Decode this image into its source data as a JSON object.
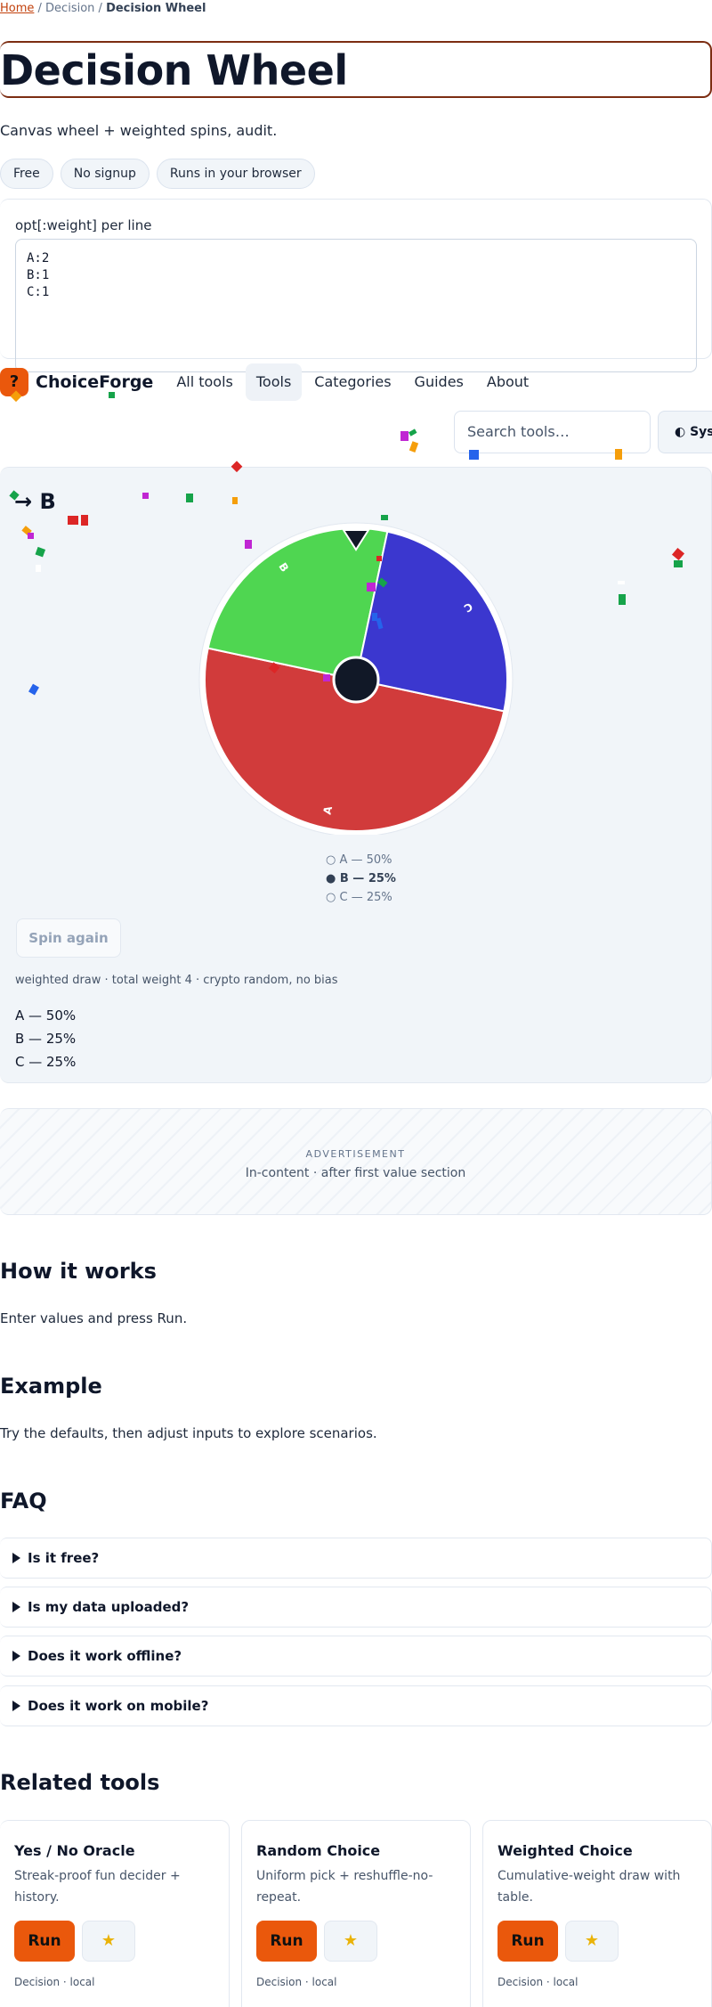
{
  "breadcrumb": {
    "home": "Home",
    "sep1": " / ",
    "section": "Decision",
    "sep2": " / ",
    "current": "Decision Wheel"
  },
  "page": {
    "title": "Decision Wheel",
    "subtitle": "Canvas wheel + weighted spins, audit."
  },
  "chips": [
    "Free",
    "No signup",
    "Runs in your browser"
  ],
  "input": {
    "label": "opt[:weight] per line",
    "value": "A:2\nB:1\nC:1"
  },
  "nav": {
    "logo_glyph": "?",
    "brand": "ChoiceForge",
    "links": [
      "All tools",
      "Tools",
      "Categories",
      "Guides",
      "About"
    ],
    "active": "Tools",
    "search_placeholder": "Search tools…",
    "theme_label": "Sys"
  },
  "wheel": {
    "result": "→ B",
    "options": [
      {
        "label": "A",
        "weight": 2,
        "color": "#d13b3b"
      },
      {
        "label": "B",
        "weight": 1,
        "color": "#4fd651"
      },
      {
        "label": "C",
        "weight": 1,
        "color": "#3b37cf"
      }
    ],
    "legend": [
      "A — 50%",
      "B — 25%",
      "C — 25%"
    ],
    "selected": "B",
    "spin_label": "Spin again",
    "meta": "weighted draw · total weight 4 · crypto random, no bias",
    "distribution": [
      "A — 50%",
      "B — 25%",
      "C — 25%"
    ]
  },
  "ad": {
    "label": "ADVERTISEMENT",
    "desc": "In-content · after first value section"
  },
  "how": {
    "heading": "How it works",
    "text": "Enter values and press Run."
  },
  "example": {
    "heading": "Example",
    "text": "Try the defaults, then adjust inputs to explore scenarios."
  },
  "faq": {
    "heading": "FAQ",
    "items": [
      "Is it free?",
      "Is my data uploaded?",
      "Does it work offline?",
      "Does it work on mobile?"
    ]
  },
  "related": {
    "heading": "Related tools",
    "tools": [
      {
        "name": "Yes / No Oracle",
        "desc": "Streak-proof fun decider + history.",
        "run": "Run",
        "meta": "Decision · local"
      },
      {
        "name": "Random Choice",
        "desc": "Uniform pick + reshuffle-no-repeat.",
        "run": "Run",
        "meta": "Decision · local"
      },
      {
        "name": "Weighted Choice",
        "desc": "Cumulative-weight draw with table.",
        "run": "Run",
        "meta": "Decision · local"
      }
    ]
  },
  "colors": {
    "accent": "#ea580c",
    "ink": "#0f172a",
    "panel": "#f1f5f9"
  }
}
